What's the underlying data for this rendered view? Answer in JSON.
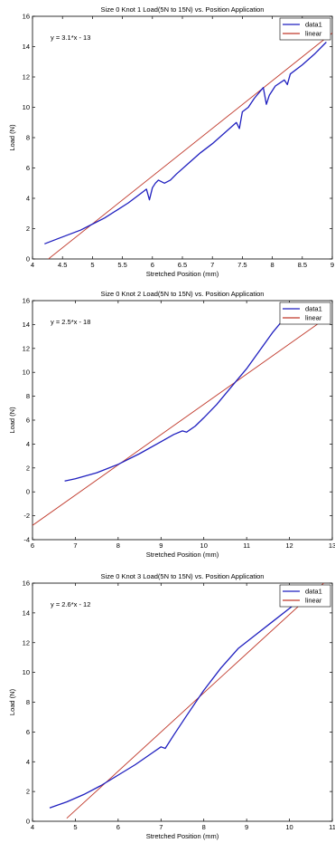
{
  "chart_data": [
    {
      "type": "line",
      "title": "Size 0 Knot 1 Load(5N to 15N) vs. Position Application",
      "xlabel": "Stretched Position (mm)",
      "ylabel": "Load (N)",
      "xlim": [
        4,
        9
      ],
      "ylim": [
        0,
        16
      ],
      "xticks": [
        "4",
        "4.5",
        "5",
        "5.5",
        "6",
        "6.5",
        "7",
        "7.5",
        "8",
        "8.5",
        "9"
      ],
      "yticks": [
        "0",
        "2",
        "4",
        "6",
        "8",
        "10",
        "12",
        "14",
        "16"
      ],
      "annotation": "y = 3.1*x - 13",
      "grid": false,
      "legend_position": "top-right",
      "series": [
        {
          "name": "data1",
          "color": "#1f1fbf",
          "points": [
            [
              4.2,
              1.0
            ],
            [
              4.4,
              1.3
            ],
            [
              4.6,
              1.6
            ],
            [
              4.8,
              1.9
            ],
            [
              5.0,
              2.3
            ],
            [
              5.2,
              2.7
            ],
            [
              5.4,
              3.2
            ],
            [
              5.6,
              3.7
            ],
            [
              5.8,
              4.3
            ],
            [
              5.9,
              4.6
            ],
            [
              5.95,
              3.9
            ],
            [
              6.0,
              4.7
            ],
            [
              6.05,
              5.0
            ],
            [
              6.1,
              5.2
            ],
            [
              6.2,
              5.0
            ],
            [
              6.3,
              5.2
            ],
            [
              6.4,
              5.6
            ],
            [
              6.6,
              6.3
            ],
            [
              6.8,
              7.0
            ],
            [
              7.0,
              7.6
            ],
            [
              7.2,
              8.3
            ],
            [
              7.4,
              9.0
            ],
            [
              7.45,
              8.6
            ],
            [
              7.5,
              9.7
            ],
            [
              7.6,
              10.0
            ],
            [
              7.7,
              10.6
            ],
            [
              7.85,
              11.3
            ],
            [
              7.9,
              10.2
            ],
            [
              7.95,
              10.8
            ],
            [
              8.05,
              11.4
            ],
            [
              8.2,
              11.8
            ],
            [
              8.25,
              11.5
            ],
            [
              8.3,
              12.2
            ],
            [
              8.5,
              12.8
            ],
            [
              8.7,
              13.5
            ],
            [
              8.9,
              14.3
            ]
          ]
        },
        {
          "name": "linear",
          "color": "#c0392b",
          "points": [
            [
              4.2,
              -0.2
            ],
            [
              9.0,
              14.9
            ]
          ]
        }
      ]
    },
    {
      "type": "line",
      "title": "Size 0 Knot 2 Load(5N to 15N) vs. Position Application",
      "xlabel": "Stretched Position (mm)",
      "ylabel": "Load (N)",
      "xlim": [
        6,
        13
      ],
      "ylim": [
        -4,
        16
      ],
      "xticks": [
        "6",
        "7",
        "8",
        "9",
        "10",
        "11",
        "12",
        "13"
      ],
      "yticks": [
        "-4",
        "-2",
        "0",
        "2",
        "4",
        "6",
        "8",
        "10",
        "12",
        "14",
        "16"
      ],
      "annotation": "y = 2.5*x - 18",
      "grid": false,
      "legend_position": "top-right",
      "series": [
        {
          "name": "data1",
          "color": "#1f1fbf",
          "points": [
            [
              6.75,
              0.9
            ],
            [
              7.0,
              1.1
            ],
            [
              7.5,
              1.6
            ],
            [
              8.0,
              2.3
            ],
            [
              8.5,
              3.2
            ],
            [
              9.0,
              4.2
            ],
            [
              9.3,
              4.8
            ],
            [
              9.5,
              5.1
            ],
            [
              9.6,
              5.0
            ],
            [
              9.8,
              5.5
            ],
            [
              10.0,
              6.2
            ],
            [
              10.3,
              7.3
            ],
            [
              10.6,
              8.6
            ],
            [
              11.0,
              10.3
            ],
            [
              11.3,
              11.8
            ],
            [
              11.6,
              13.3
            ],
            [
              11.9,
              14.6
            ],
            [
              12.2,
              15.6
            ]
          ]
        },
        {
          "name": "linear",
          "color": "#c0392b",
          "points": [
            [
              6.0,
              -2.8
            ],
            [
              12.8,
              14.4
            ]
          ]
        }
      ]
    },
    {
      "type": "line",
      "title": "Size 0 Knot 3 Load(5N to 15N) vs. Position Application",
      "xlabel": "Stretched Position (mm)",
      "ylabel": "Load (N)",
      "xlim": [
        4,
        11
      ],
      "ylim": [
        0,
        16
      ],
      "xticks": [
        "4",
        "5",
        "6",
        "7",
        "8",
        "9",
        "10",
        "11"
      ],
      "yticks": [
        "0",
        "2",
        "4",
        "6",
        "8",
        "10",
        "12",
        "14",
        "16"
      ],
      "annotation": "y = 2.6*x - 12",
      "grid": false,
      "legend_position": "top-right",
      "series": [
        {
          "name": "data1",
          "color": "#1f1fbf",
          "points": [
            [
              4.4,
              0.9
            ],
            [
              4.8,
              1.3
            ],
            [
              5.2,
              1.8
            ],
            [
              5.6,
              2.4
            ],
            [
              6.0,
              3.1
            ],
            [
              6.4,
              3.8
            ],
            [
              6.8,
              4.6
            ],
            [
              7.0,
              5.0
            ],
            [
              7.1,
              4.9
            ],
            [
              7.3,
              5.8
            ],
            [
              7.6,
              7.1
            ],
            [
              8.0,
              8.8
            ],
            [
              8.4,
              10.3
            ],
            [
              8.8,
              11.6
            ],
            [
              9.2,
              12.5
            ],
            [
              9.6,
              13.4
            ],
            [
              10.0,
              14.3
            ],
            [
              10.3,
              15.0
            ]
          ]
        },
        {
          "name": "linear",
          "color": "#c0392b",
          "points": [
            [
              4.8,
              0.2
            ],
            [
              10.8,
              16.0
            ]
          ]
        }
      ]
    }
  ]
}
